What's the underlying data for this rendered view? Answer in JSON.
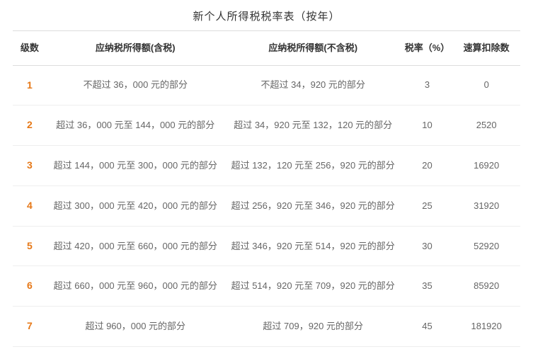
{
  "title": "新个人所得税税率表（按年）",
  "columns": [
    {
      "key": "level",
      "label": "级数"
    },
    {
      "key": "taxableIncl",
      "label": "应纳税所得额(含税)"
    },
    {
      "key": "taxableExcl",
      "label": "应纳税所得额(不含税)"
    },
    {
      "key": "rate",
      "label": "税率（%）"
    },
    {
      "key": "deduct",
      "label": "速算扣除数"
    }
  ],
  "rows": [
    {
      "level": "1",
      "taxableIncl": "不超过 36，000 元的部分",
      "taxableExcl": "不超过 34，920 元的部分",
      "rate": "3",
      "deduct": "0"
    },
    {
      "level": "2",
      "taxableIncl": "超过 36，000 元至 144，000 元的部分",
      "taxableExcl": "超过 34，920 元至 132，120 元的部分",
      "rate": "10",
      "deduct": "2520"
    },
    {
      "level": "3",
      "taxableIncl": "超过 144，000 元至 300，000 元的部分",
      "taxableExcl": "超过 132，120 元至 256，920 元的部分",
      "rate": "20",
      "deduct": "16920"
    },
    {
      "level": "4",
      "taxableIncl": "超过 300，000 元至 420，000 元的部分",
      "taxableExcl": "超过 256，920 元至 346，920 元的部分",
      "rate": "25",
      "deduct": "31920"
    },
    {
      "level": "5",
      "taxableIncl": "超过 420，000 元至 660，000 元的部分",
      "taxableExcl": "超过 346，920 元至 514，920 元的部分",
      "rate": "30",
      "deduct": "52920"
    },
    {
      "level": "6",
      "taxableIncl": "超过 660，000 元至 960，000 元的部分",
      "taxableExcl": "超过 514，920 元至 709，920 元的部分",
      "rate": "35",
      "deduct": "85920"
    },
    {
      "level": "7",
      "taxableIncl": "超过 960，000 元的部分",
      "taxableExcl": "超过 709，920 元的部分",
      "rate": "45",
      "deduct": "181920"
    }
  ],
  "colors": {
    "title": "#333333",
    "header_text": "#333333",
    "body_text": "#666666",
    "level_text": "#e67817",
    "border_header": "#dddddd",
    "border_row": "#eeeeee",
    "background": "#ffffff"
  },
  "fonts": {
    "title_size": 15,
    "header_size": 13,
    "body_size": 13,
    "level_size": 14
  }
}
